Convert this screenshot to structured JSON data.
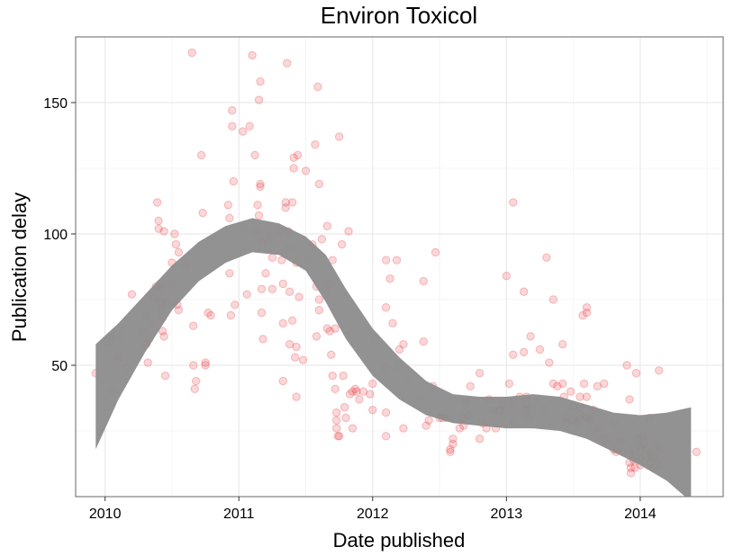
{
  "chart_data": {
    "type": "scatter",
    "title": "Environ Toxicol",
    "xlabel": "Date published",
    "ylabel": "Publication delay",
    "xlim": [
      2009.78,
      2014.62
    ],
    "ylim": [
      0,
      175
    ],
    "x_ticks": [
      2010,
      2011,
      2012,
      2013,
      2014
    ],
    "y_ticks": [
      50,
      100,
      150
    ],
    "grid": true,
    "legend": "none",
    "point_color": "#e8393a",
    "band_color": "#8c8c8c",
    "series": [
      {
        "points": [
          [
            2009.93,
            47
          ],
          [
            2010.03,
            59
          ],
          [
            2010.04,
            61
          ],
          [
            2010.06,
            40
          ],
          [
            2010.1,
            53
          ],
          [
            2010.13,
            61
          ],
          [
            2010.16,
            49
          ],
          [
            2010.2,
            77
          ],
          [
            2010.28,
            63
          ],
          [
            2010.3,
            69
          ],
          [
            2010.31,
            58
          ],
          [
            2010.32,
            51
          ],
          [
            2010.33,
            60
          ],
          [
            2010.35,
            66
          ],
          [
            2010.37,
            76
          ],
          [
            2010.38,
            80
          ],
          [
            2010.39,
            112
          ],
          [
            2010.4,
            105
          ],
          [
            2010.4,
            102
          ],
          [
            2010.41,
            81
          ],
          [
            2010.41,
            74
          ],
          [
            2010.42,
            79
          ],
          [
            2010.42,
            71
          ],
          [
            2010.43,
            68
          ],
          [
            2010.43,
            63
          ],
          [
            2010.44,
            101
          ],
          [
            2010.44,
            61
          ],
          [
            2010.45,
            46
          ],
          [
            2010.46,
            74
          ],
          [
            2010.5,
            89
          ],
          [
            2010.5,
            81
          ],
          [
            2010.52,
            100
          ],
          [
            2010.53,
            96
          ],
          [
            2010.54,
            73
          ],
          [
            2010.55,
            93
          ],
          [
            2010.55,
            71
          ],
          [
            2010.6,
            88
          ],
          [
            2010.65,
            169
          ],
          [
            2010.66,
            65
          ],
          [
            2010.66,
            50
          ],
          [
            2010.67,
            41
          ],
          [
            2010.68,
            44
          ],
          [
            2010.72,
            130
          ],
          [
            2010.73,
            108
          ],
          [
            2010.75,
            51
          ],
          [
            2010.75,
            50
          ],
          [
            2010.77,
            70
          ],
          [
            2010.79,
            69
          ],
          [
            2010.92,
            111
          ],
          [
            2010.93,
            106
          ],
          [
            2010.93,
            85
          ],
          [
            2010.94,
            69
          ],
          [
            2010.95,
            141
          ],
          [
            2010.95,
            147
          ],
          [
            2010.96,
            120
          ],
          [
            2010.97,
            73
          ],
          [
            2011.03,
            139
          ],
          [
            2011.04,
            102
          ],
          [
            2011.06,
            77
          ],
          [
            2011.08,
            141
          ],
          [
            2011.1,
            168
          ],
          [
            2011.12,
            130
          ],
          [
            2011.13,
            101
          ],
          [
            2011.14,
            111
          ],
          [
            2011.15,
            107
          ],
          [
            2011.15,
            151
          ],
          [
            2011.16,
            119
          ],
          [
            2011.16,
            118
          ],
          [
            2011.16,
            158
          ],
          [
            2011.17,
            97
          ],
          [
            2011.17,
            79
          ],
          [
            2011.17,
            70
          ],
          [
            2011.18,
            60
          ],
          [
            2011.2,
            85
          ],
          [
            2011.23,
            99
          ],
          [
            2011.25,
            79
          ],
          [
            2011.25,
            91
          ],
          [
            2011.3,
            101
          ],
          [
            2011.32,
            90
          ],
          [
            2011.33,
            81
          ],
          [
            2011.33,
            66
          ],
          [
            2011.33,
            44
          ],
          [
            2011.35,
            112
          ],
          [
            2011.35,
            110
          ],
          [
            2011.36,
            165
          ],
          [
            2011.37,
            101
          ],
          [
            2011.38,
            78
          ],
          [
            2011.38,
            58
          ],
          [
            2011.39,
            95
          ],
          [
            2011.4,
            67
          ],
          [
            2011.4,
            112
          ],
          [
            2011.41,
            125
          ],
          [
            2011.41,
            129
          ],
          [
            2011.42,
            53
          ],
          [
            2011.43,
            57
          ],
          [
            2011.43,
            38
          ],
          [
            2011.43,
            89
          ],
          [
            2011.44,
            130
          ],
          [
            2011.45,
            76
          ],
          [
            2011.48,
            52
          ],
          [
            2011.5,
            124
          ],
          [
            2011.52,
            90
          ],
          [
            2011.55,
            96
          ],
          [
            2011.57,
            134
          ],
          [
            2011.58,
            61
          ],
          [
            2011.58,
            80
          ],
          [
            2011.59,
            156
          ],
          [
            2011.6,
            119
          ],
          [
            2011.6,
            75
          ],
          [
            2011.6,
            71
          ],
          [
            2011.62,
            98
          ],
          [
            2011.65,
            79
          ],
          [
            2011.66,
            64
          ],
          [
            2011.66,
            103
          ],
          [
            2011.67,
            81
          ],
          [
            2011.68,
            63
          ],
          [
            2011.69,
            54
          ],
          [
            2011.7,
            46
          ],
          [
            2011.7,
            90
          ],
          [
            2011.72,
            64
          ],
          [
            2011.72,
            41
          ],
          [
            2011.73,
            32
          ],
          [
            2011.73,
            29
          ],
          [
            2011.73,
            26
          ],
          [
            2011.74,
            23
          ],
          [
            2011.75,
            23
          ],
          [
            2011.75,
            137
          ],
          [
            2011.77,
            96
          ],
          [
            2011.78,
            46
          ],
          [
            2011.79,
            34
          ],
          [
            2011.8,
            30
          ],
          [
            2011.82,
            101
          ],
          [
            2011.83,
            39
          ],
          [
            2011.85,
            40
          ],
          [
            2011.85,
            26
          ],
          [
            2011.87,
            41
          ],
          [
            2011.88,
            40
          ],
          [
            2011.9,
            37
          ],
          [
            2011.93,
            40
          ],
          [
            2011.98,
            39
          ],
          [
            2012,
            43
          ],
          [
            2012,
            33
          ],
          [
            2012.02,
            60
          ],
          [
            2012.1,
            90
          ],
          [
            2012.1,
            72
          ],
          [
            2012.1,
            49
          ],
          [
            2012.1,
            32
          ],
          [
            2012.1,
            23
          ],
          [
            2012.13,
            83
          ],
          [
            2012.15,
            66
          ],
          [
            2012.18,
            90
          ],
          [
            2012.2,
            56
          ],
          [
            2012.2,
            50
          ],
          [
            2012.23,
            26
          ],
          [
            2012.23,
            58
          ],
          [
            2012.26,
            44
          ],
          [
            2012.35,
            38
          ],
          [
            2012.38,
            82
          ],
          [
            2012.38,
            59
          ],
          [
            2012.4,
            27
          ],
          [
            2012.42,
            29
          ],
          [
            2012.45,
            42
          ],
          [
            2012.47,
            93
          ],
          [
            2012.5,
            30
          ],
          [
            2012.52,
            30
          ],
          [
            2012.55,
            30
          ],
          [
            2012.58,
            18
          ],
          [
            2012.58,
            17
          ],
          [
            2012.6,
            22
          ],
          [
            2012.6,
            20
          ],
          [
            2012.65,
            26
          ],
          [
            2012.67,
            30
          ],
          [
            2012.68,
            27
          ],
          [
            2012.7,
            36
          ],
          [
            2012.72,
            31
          ],
          [
            2012.73,
            42
          ],
          [
            2012.8,
            47
          ],
          [
            2012.8,
            22
          ],
          [
            2012.82,
            28
          ],
          [
            2012.85,
            26
          ],
          [
            2012.87,
            37
          ],
          [
            2012.9,
            33
          ],
          [
            2012.92,
            26
          ],
          [
            2012.95,
            33
          ],
          [
            2012.97,
            35
          ],
          [
            2013,
            84
          ],
          [
            2013.02,
            43
          ],
          [
            2013.05,
            112
          ],
          [
            2013.05,
            54
          ],
          [
            2013.05,
            36
          ],
          [
            2013.06,
            28
          ],
          [
            2013.1,
            38
          ],
          [
            2013.13,
            78
          ],
          [
            2013.13,
            55
          ],
          [
            2013.15,
            38
          ],
          [
            2013.15,
            35
          ],
          [
            2013.15,
            33
          ],
          [
            2013.17,
            30
          ],
          [
            2013.18,
            61
          ],
          [
            2013.25,
            56
          ],
          [
            2013.28,
            33
          ],
          [
            2013.3,
            91
          ],
          [
            2013.32,
            51
          ],
          [
            2013.35,
            75
          ],
          [
            2013.35,
            43
          ],
          [
            2013.38,
            42
          ],
          [
            2013.42,
            58
          ],
          [
            2013.42,
            43
          ],
          [
            2013.43,
            38
          ],
          [
            2013.45,
            30
          ],
          [
            2013.45,
            28
          ],
          [
            2013.48,
            40
          ],
          [
            2013.5,
            34
          ],
          [
            2013.5,
            29
          ],
          [
            2013.53,
            28
          ],
          [
            2013.55,
            38
          ],
          [
            2013.55,
            34
          ],
          [
            2013.55,
            31
          ],
          [
            2013.57,
            69
          ],
          [
            2013.58,
            43
          ],
          [
            2013.6,
            72
          ],
          [
            2013.6,
            70
          ],
          [
            2013.6,
            38
          ],
          [
            2013.6,
            30
          ],
          [
            2013.63,
            29
          ],
          [
            2013.65,
            33
          ],
          [
            2013.65,
            25
          ],
          [
            2013.68,
            42
          ],
          [
            2013.7,
            26
          ],
          [
            2013.72,
            22
          ],
          [
            2013.73,
            43
          ],
          [
            2013.75,
            20
          ],
          [
            2013.8,
            28
          ],
          [
            2013.8,
            18
          ],
          [
            2013.82,
            17
          ],
          [
            2013.85,
            21
          ],
          [
            2013.87,
            17
          ],
          [
            2013.9,
            50
          ],
          [
            2013.92,
            37
          ],
          [
            2013.92,
            16
          ],
          [
            2013.92,
            13
          ],
          [
            2013.93,
            11
          ],
          [
            2013.93,
            9
          ],
          [
            2013.95,
            18
          ],
          [
            2013.95,
            14
          ],
          [
            2013.96,
            11
          ],
          [
            2013.97,
            47
          ],
          [
            2013.98,
            22
          ],
          [
            2014,
            19
          ],
          [
            2014,
            15
          ],
          [
            2014,
            12
          ],
          [
            2014.02,
            23
          ],
          [
            2014.03,
            20
          ],
          [
            2014.04,
            18
          ],
          [
            2014.05,
            15
          ],
          [
            2014.07,
            30
          ],
          [
            2014.08,
            16
          ],
          [
            2014.08,
            13
          ],
          [
            2014.1,
            15
          ],
          [
            2014.1,
            11
          ],
          [
            2014.12,
            19
          ],
          [
            2014.13,
            14
          ],
          [
            2014.14,
            48
          ],
          [
            2014.15,
            18
          ],
          [
            2014.15,
            12
          ],
          [
            2014.42,
            17
          ]
        ]
      }
    ],
    "smooth_band": {
      "x": [
        2009.93,
        2010.1,
        2010.3,
        2010.5,
        2010.7,
        2010.9,
        2011.1,
        2011.3,
        2011.5,
        2011.65,
        2011.8,
        2012,
        2012.2,
        2012.4,
        2012.6,
        2012.8,
        2013,
        2013.2,
        2013.4,
        2013.6,
        2013.8,
        2014,
        2014.2,
        2014.38
      ],
      "upper": [
        58,
        66,
        77,
        88,
        97,
        103,
        106,
        104,
        99,
        92,
        79,
        64,
        53,
        44,
        39,
        38,
        38,
        39,
        38,
        35,
        32,
        31,
        32,
        34
      ],
      "lower": [
        18,
        37,
        55,
        71,
        82,
        89,
        93,
        92,
        86,
        74,
        60,
        46,
        37,
        31,
        28,
        27,
        26,
        26,
        25,
        22,
        17,
        12,
        6,
        -2
      ]
    }
  }
}
